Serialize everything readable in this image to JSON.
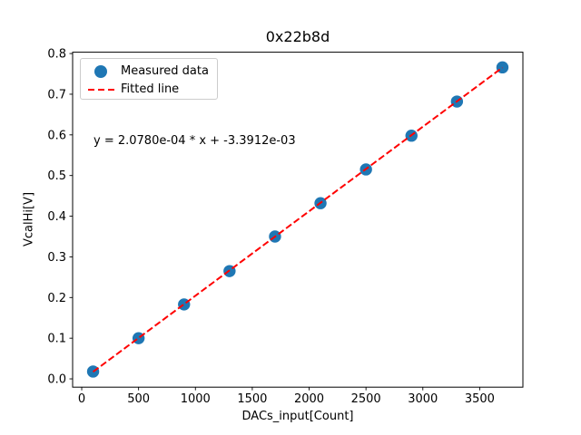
{
  "figure": {
    "background_color": "#ffffff",
    "text_color": "#000000"
  },
  "chart_data": {
    "type": "scatter",
    "title": "0x22b8d",
    "xlabel": "DACs_input[Count]",
    "ylabel": "VcalHi[V]",
    "xlim": [
      -80,
      3880
    ],
    "ylim": [
      -0.0204,
      0.8033
    ],
    "x_ticks": [
      0,
      500,
      1000,
      1500,
      2000,
      2500,
      3000,
      3500
    ],
    "x_tick_labels": [
      "0",
      "500",
      "1000",
      "1500",
      "2000",
      "2500",
      "3000",
      "3500"
    ],
    "y_ticks": [
      0.0,
      0.1,
      0.2,
      0.3,
      0.4,
      0.5,
      0.6,
      0.7,
      0.8
    ],
    "y_tick_labels": [
      "0.0",
      "0.1",
      "0.2",
      "0.3",
      "0.4",
      "0.5",
      "0.6",
      "0.7",
      "0.8"
    ],
    "grid": false,
    "legend_position": "upper left",
    "series": [
      {
        "name": "Measured data",
        "type": "scatter",
        "marker": "circle",
        "color": "#1f77b4",
        "x": [
          100,
          500,
          900,
          1300,
          1700,
          2100,
          2500,
          2900,
          3300,
          3700
        ],
        "y": [
          0.018,
          0.1,
          0.183,
          0.265,
          0.35,
          0.432,
          0.515,
          0.598,
          0.682,
          0.766
        ]
      },
      {
        "name": "Fitted line",
        "type": "line",
        "style": "dashed",
        "color": "#ff0000",
        "fit": {
          "slope": 0.0002078,
          "intercept": -0.0033912,
          "x_range": [
            100,
            3700
          ]
        }
      }
    ],
    "annotation": {
      "text": "y = 2.0780e-04 * x + -3.3912e-03",
      "color": "#000000"
    }
  }
}
